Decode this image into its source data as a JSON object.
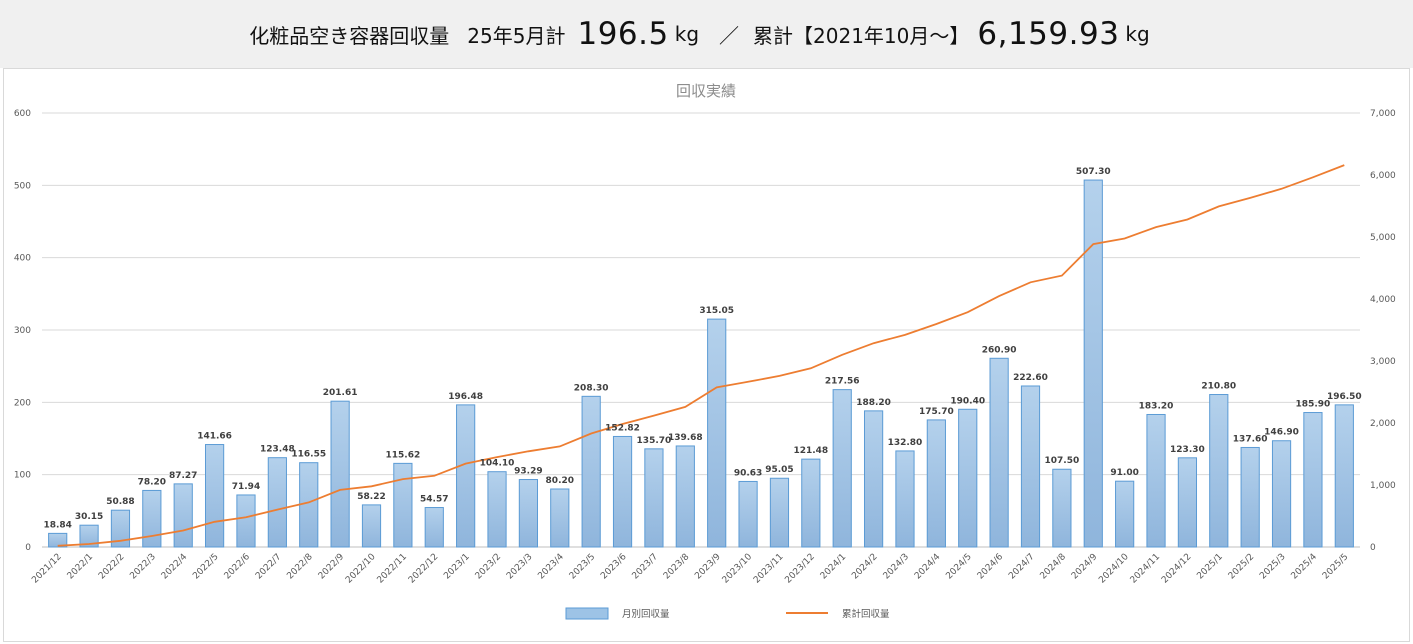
{
  "header": {
    "label1": "化粧品空き容器回収量",
    "label2": "25年5月計",
    "monthly_value": "196.5",
    "unit1": "kg",
    "separator": "／",
    "label3": "累計【2021年10月～】",
    "total_value": "6,159.93",
    "unit2": "kg"
  },
  "chart_data": {
    "type": "bar",
    "title": "回収実績",
    "categories": [
      "2021/12",
      "2022/1",
      "2022/2",
      "2022/3",
      "2022/4",
      "2022/5",
      "2022/6",
      "2022/7",
      "2022/8",
      "2022/9",
      "2022/10",
      "2022/11",
      "2022/12",
      "2023/1",
      "2023/2",
      "2023/3",
      "2023/4",
      "2023/5",
      "2023/6",
      "2023/7",
      "2023/8",
      "2023/9",
      "2023/10",
      "2023/11",
      "2023/12",
      "2024/1",
      "2024/2",
      "2024/3",
      "2024/4",
      "2024/5",
      "2024/6",
      "2024/7",
      "2024/8",
      "2024/9",
      "2024/10",
      "2024/11",
      "2024/12",
      "2025/1",
      "2025/2",
      "2025/3",
      "2025/4",
      "2025/5"
    ],
    "series": [
      {
        "name": "月別回収量",
        "type": "bar",
        "axis": "left",
        "color": "#9dc3e6",
        "values": [
          18.84,
          30.15,
          50.88,
          78.2,
          87.27,
          141.66,
          71.94,
          123.48,
          116.55,
          201.61,
          58.22,
          115.62,
          54.57,
          196.48,
          104.1,
          93.29,
          80.2,
          208.3,
          152.82,
          135.7,
          139.68,
          315.05,
          90.63,
          95.05,
          121.48,
          217.56,
          188.2,
          132.8,
          175.7,
          190.4,
          260.9,
          222.6,
          107.5,
          507.3,
          91.0,
          183.2,
          123.3,
          210.8,
          137.6,
          146.9,
          185.9,
          196.5
        ],
        "labels": [
          "18.84",
          "30.15",
          "50.88",
          "78.20",
          "87.27",
          "141.66",
          "71.94",
          "123.48",
          "116.55",
          "201.61",
          "58.22",
          "115.62",
          "54.57",
          "196.48",
          "104.10",
          "93.29",
          "80.20",
          "208.30",
          "152.82",
          "135.70",
          "139.68",
          "315.05",
          "90.63",
          "95.05",
          "121.48",
          "217.56",
          "188.20",
          "132.80",
          "175.70",
          "190.40",
          "260.90",
          "222.60",
          "107.50",
          "507.30",
          "91.00",
          "183.20",
          "123.30",
          "210.80",
          "137.60",
          "146.90",
          "185.90",
          "196.50"
        ]
      },
      {
        "name": "累計回収量",
        "type": "line",
        "axis": "right",
        "color": "#ed7d31",
        "values": [
          18.84,
          48.99,
          99.87,
          178.07,
          265.34,
          407.0,
          478.94,
          602.42,
          718.97,
          920.58,
          978.8,
          1094.42,
          1148.99,
          1345.47,
          1449.57,
          1542.86,
          1623.06,
          1831.36,
          1984.18,
          2119.88,
          2259.56,
          2574.61,
          2665.24,
          2760.29,
          2881.77,
          3099.33,
          3287.53,
          3420.33,
          3596.03,
          3786.43,
          4047.33,
          4269.93,
          4377.43,
          4884.73,
          4975.73,
          5158.93,
          5282.23,
          5493.03,
          5630.63,
          5777.53,
          5963.43,
          6159.93
        ]
      }
    ],
    "y_left": {
      "min": 0,
      "max": 600,
      "ticks": [
        "0",
        "100",
        "200",
        "300",
        "400",
        "500",
        "600"
      ]
    },
    "y_right": {
      "min": 0,
      "max": 7000,
      "ticks": [
        "0",
        "1,000",
        "2,000",
        "3,000",
        "4,000",
        "5,000",
        "6,000",
        "7,000"
      ]
    },
    "grid": true,
    "legend_position": "bottom"
  }
}
